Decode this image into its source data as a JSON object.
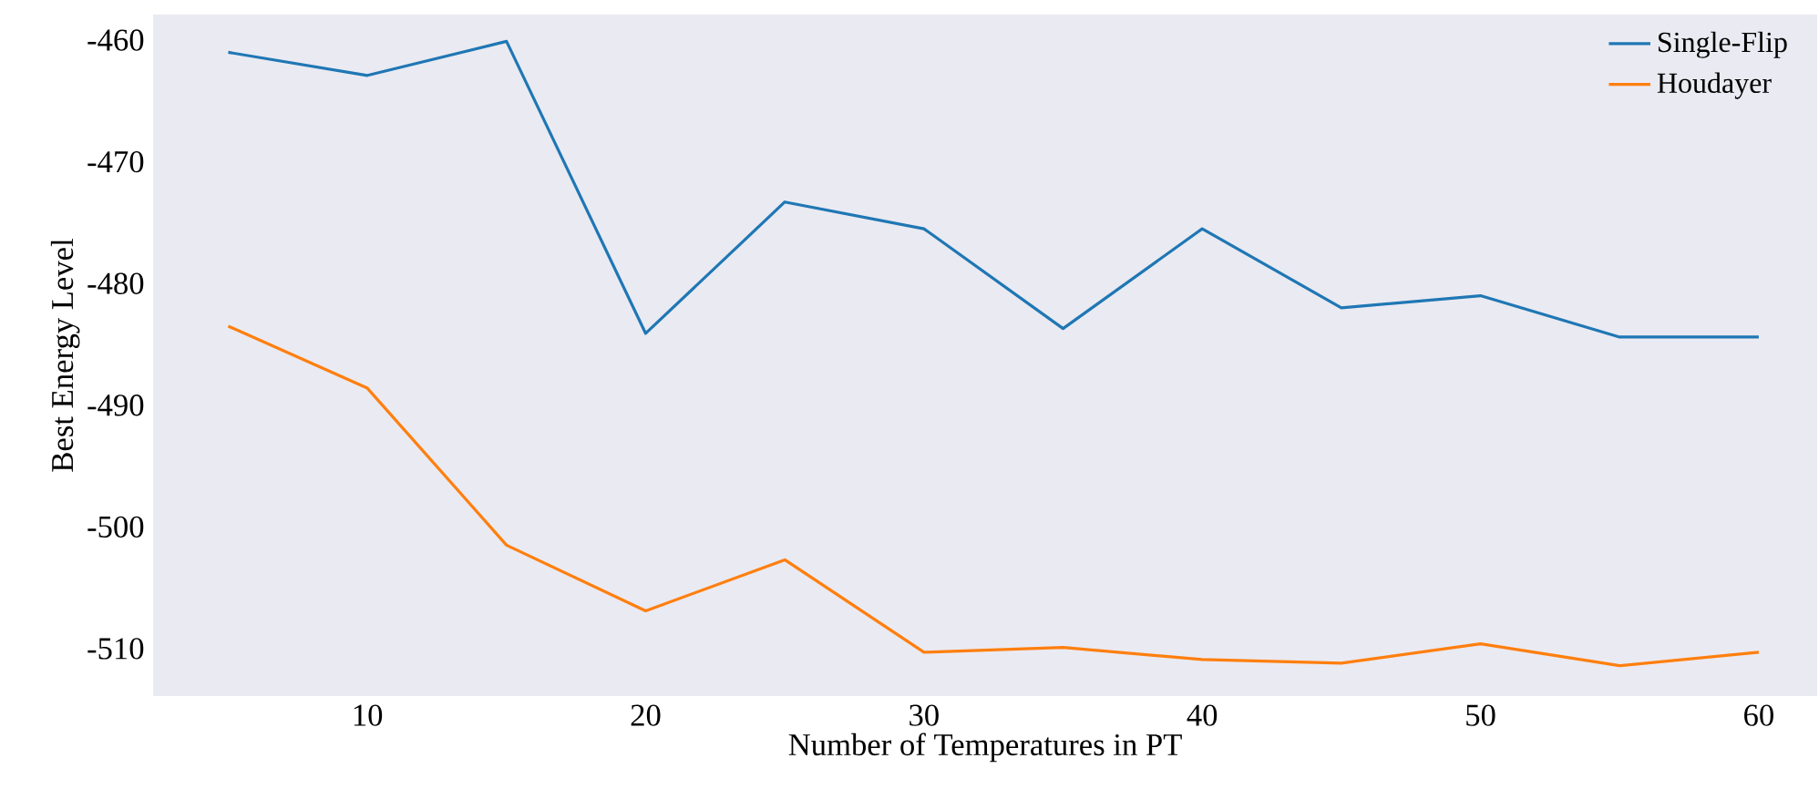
{
  "chart_data": {
    "type": "line",
    "xlabel": "Number of Temperatures in PT",
    "ylabel": "Best Energy Level",
    "x": [
      5,
      10,
      15,
      20,
      25,
      30,
      35,
      40,
      45,
      50,
      55,
      60
    ],
    "series": [
      {
        "name": "Single-Flip",
        "color": "#1f77b4",
        "values": [
          -461.0,
          -462.9,
          -460.1,
          -484.1,
          -473.3,
          -475.5,
          -483.7,
          -475.5,
          -482.0,
          -481.0,
          -484.4,
          -484.4
        ]
      },
      {
        "name": "Houdayer",
        "color": "#ff7f0e",
        "values": [
          -483.5,
          -488.6,
          -501.5,
          -506.9,
          -502.7,
          -510.3,
          -509.9,
          -510.9,
          -511.2,
          -509.6,
          -511.4,
          -510.3
        ]
      }
    ],
    "xlim": [
      2.3,
      62.1
    ],
    "ylim": [
      -513.9,
      -457.9
    ],
    "xticks": [
      10,
      20,
      30,
      40,
      50,
      60
    ],
    "yticks": [
      -510,
      -500,
      -490,
      -480,
      -470,
      -460
    ],
    "legend": "top right"
  }
}
